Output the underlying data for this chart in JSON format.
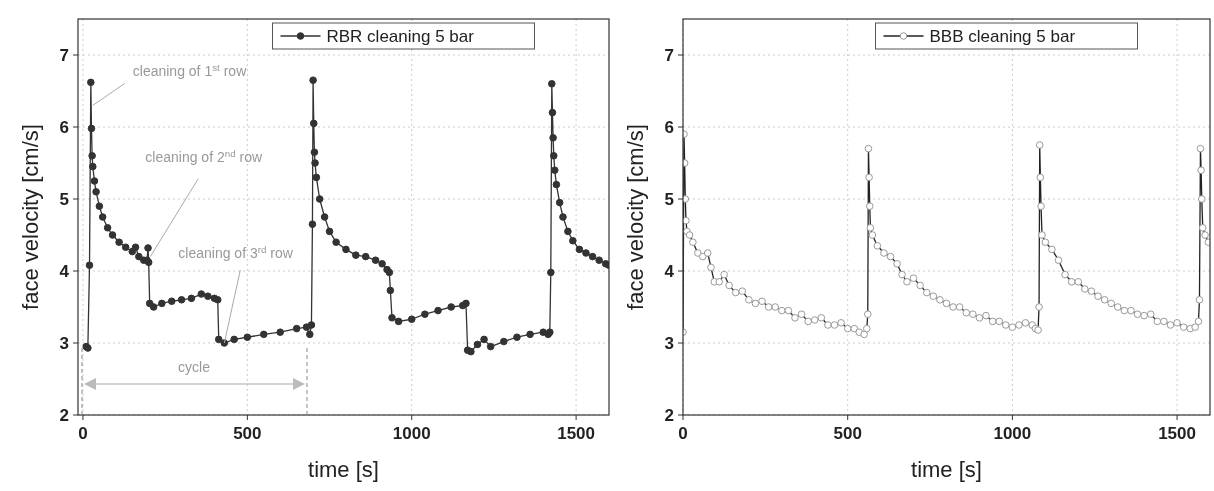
{
  "chart_data": [
    {
      "type": "line",
      "xlabel": "time [s]",
      "ylabel": "face velocity [cm/s]",
      "xlim": [
        -15,
        1600
      ],
      "ylim": [
        2,
        7.5
      ],
      "xticks": [
        0,
        500,
        1000,
        1500
      ],
      "yticks": [
        2,
        3,
        4,
        5,
        6,
        7
      ],
      "grid": true,
      "legend": "top",
      "marker": "circle",
      "line_style": "solid",
      "series": [
        {
          "name": "RBR cleaning 5 bar",
          "color": "#333333",
          "x": [
            10,
            15,
            20,
            24,
            26,
            28,
            30,
            35,
            40,
            50,
            60,
            75,
            90,
            110,
            130,
            150,
            160,
            170,
            185,
            195,
            198,
            200,
            203,
            215,
            240,
            270,
            300,
            330,
            360,
            380,
            400,
            410,
            413,
            430,
            460,
            500,
            550,
            600,
            650,
            680,
            690,
            695,
            698,
            700,
            702,
            704,
            706,
            710,
            720,
            735,
            750,
            770,
            800,
            830,
            860,
            890,
            910,
            925,
            932,
            935,
            940,
            960,
            1000,
            1040,
            1080,
            1120,
            1155,
            1165,
            1170,
            1180,
            1200,
            1220,
            1240,
            1280,
            1320,
            1360,
            1400,
            1415,
            1420,
            1423,
            1426,
            1428,
            1430,
            1432,
            1435,
            1440,
            1450,
            1460,
            1475,
            1490,
            1510,
            1530,
            1550,
            1570,
            1590,
            1600
          ],
          "values": [
            2.95,
            2.93,
            4.08,
            6.62,
            5.98,
            5.6,
            5.45,
            5.25,
            5.1,
            4.9,
            4.75,
            4.6,
            4.5,
            4.4,
            4.33,
            4.27,
            4.33,
            4.2,
            4.15,
            4.15,
            4.32,
            4.12,
            3.55,
            3.5,
            3.55,
            3.58,
            3.6,
            3.62,
            3.68,
            3.65,
            3.62,
            3.6,
            3.05,
            3.0,
            3.05,
            3.08,
            3.12,
            3.15,
            3.2,
            3.22,
            3.12,
            3.25,
            4.65,
            6.65,
            6.05,
            5.65,
            5.5,
            5.3,
            5.0,
            4.75,
            4.55,
            4.4,
            4.3,
            4.22,
            4.2,
            4.15,
            4.1,
            4.02,
            3.98,
            3.73,
            3.35,
            3.3,
            3.33,
            3.4,
            3.45,
            3.5,
            3.52,
            3.55,
            2.9,
            2.88,
            2.98,
            3.05,
            2.95,
            3.02,
            3.08,
            3.12,
            3.15,
            3.12,
            3.15,
            3.98,
            6.6,
            6.2,
            5.85,
            5.6,
            5.4,
            5.2,
            4.95,
            4.75,
            4.55,
            4.42,
            4.3,
            4.25,
            4.2,
            4.15,
            4.1,
            4.08
          ]
        }
      ],
      "annotations": [
        {
          "text": "cleaning of 1$^{st}$ row",
          "x": 30,
          "y": 6.3
        },
        {
          "text": "cleaning of 2$^{nd}$ row",
          "x": 205,
          "y": 4.2
        },
        {
          "text": "cleaning of 3$^{rd}$ row",
          "x": 430,
          "y": 3.0
        },
        "cycle"
      ]
    },
    {
      "type": "line",
      "xlabel": "time [s]",
      "ylabel": "face velocity [cm/s]",
      "xlim": [
        0,
        1600
      ],
      "ylim": [
        2,
        7.5
      ],
      "xticks": [
        0,
        500,
        1000,
        1500
      ],
      "yticks": [
        2,
        3,
        4,
        5,
        6,
        7
      ],
      "grid": true,
      "legend": "top",
      "marker": "circle",
      "line_style": "solid",
      "series": [
        {
          "name": "BBB cleaning 5 bar",
          "color": "#222222",
          "x": [
            0,
            3,
            5,
            7,
            9,
            12,
            20,
            30,
            45,
            60,
            75,
            85,
            95,
            110,
            125,
            140,
            160,
            180,
            200,
            220,
            240,
            260,
            280,
            300,
            320,
            340,
            360,
            380,
            400,
            420,
            440,
            460,
            480,
            500,
            520,
            535,
            550,
            558,
            561,
            563,
            565,
            567,
            569,
            575,
            590,
            610,
            630,
            650,
            665,
            680,
            700,
            720,
            740,
            760,
            780,
            800,
            820,
            840,
            860,
            880,
            900,
            920,
            940,
            960,
            980,
            1000,
            1020,
            1040,
            1060,
            1070,
            1078,
            1081,
            1083,
            1085,
            1087,
            1090,
            1100,
            1120,
            1140,
            1160,
            1180,
            1200,
            1220,
            1240,
            1260,
            1280,
            1300,
            1320,
            1340,
            1360,
            1380,
            1400,
            1420,
            1440,
            1460,
            1480,
            1500,
            1520,
            1540,
            1555,
            1565,
            1568,
            1571,
            1573,
            1575,
            1578,
            1585,
            1595
          ],
          "values": [
            3.15,
            5.9,
            5.5,
            5.0,
            4.7,
            4.55,
            4.5,
            4.4,
            4.25,
            4.2,
            4.25,
            4.05,
            3.85,
            3.85,
            3.95,
            3.8,
            3.7,
            3.72,
            3.6,
            3.55,
            3.58,
            3.5,
            3.5,
            3.45,
            3.45,
            3.35,
            3.4,
            3.3,
            3.32,
            3.35,
            3.25,
            3.25,
            3.28,
            3.2,
            3.2,
            3.15,
            3.12,
            3.2,
            3.4,
            5.7,
            5.3,
            4.9,
            4.6,
            4.5,
            4.35,
            4.25,
            4.2,
            4.1,
            3.95,
            3.85,
            3.9,
            3.8,
            3.7,
            3.65,
            3.6,
            3.55,
            3.5,
            3.5,
            3.42,
            3.4,
            3.35,
            3.38,
            3.3,
            3.3,
            3.25,
            3.22,
            3.25,
            3.28,
            3.25,
            3.2,
            3.18,
            3.5,
            5.75,
            5.3,
            4.9,
            4.5,
            4.4,
            4.3,
            4.15,
            3.95,
            3.85,
            3.85,
            3.75,
            3.72,
            3.65,
            3.6,
            3.55,
            3.5,
            3.45,
            3.45,
            3.4,
            3.38,
            3.4,
            3.3,
            3.3,
            3.25,
            3.28,
            3.22,
            3.2,
            3.22,
            3.3,
            3.6,
            5.7,
            5.4,
            5.0,
            4.6,
            4.5,
            4.4
          ]
        }
      ]
    }
  ]
}
